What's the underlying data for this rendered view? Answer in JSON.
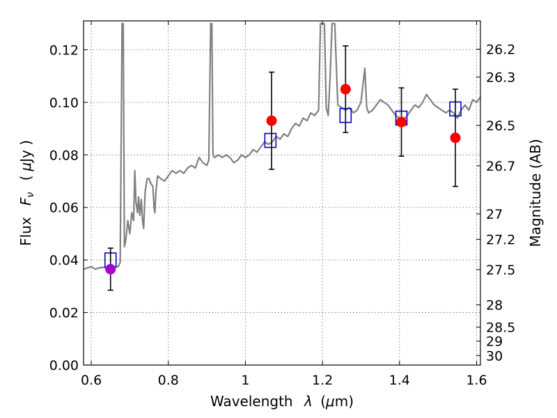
{
  "chart_data": {
    "type": "scatter",
    "xlabel": "Wavelength",
    "xlabel_symbol": "λ",
    "xlabel_unit_open": "(",
    "xlabel_unit_mu": "μ",
    "xlabel_unit_rest": "m)",
    "ylabel": "Flux",
    "ylabel_symbol": "F",
    "ylabel_symbol_sub": "ν",
    "ylabel_unit_open": "(",
    "ylabel_unit_mu": "μ",
    "ylabel_unit_rest": "Jy )",
    "ylabel_right": "Magnitude (AB)",
    "xlim": [
      0.58,
      1.61
    ],
    "ylim": [
      0.0,
      0.131
    ],
    "xticks": [
      0.6,
      0.8,
      1.0,
      1.2,
      1.4,
      1.6
    ],
    "xtick_labels": [
      "0.6",
      "0.8",
      "1",
      "1.2",
      "1.4",
      "1.6"
    ],
    "yticks": [
      0.0,
      0.02,
      0.04,
      0.06,
      0.08,
      0.1,
      0.12
    ],
    "ytick_labels": [
      "0.00",
      "0.02",
      "0.04",
      "0.06",
      "0.08",
      "0.10",
      "0.12"
    ],
    "right_ticks": [
      {
        "label": "26.2",
        "mag": 26.2
      },
      {
        "label": "26.3",
        "mag": 26.3
      },
      {
        "label": "26.5",
        "mag": 26.5
      },
      {
        "label": "26.7",
        "mag": 26.7
      },
      {
        "label": "27",
        "mag": 27.0
      },
      {
        "label": "27.2",
        "mag": 27.2
      },
      {
        "label": "27.5",
        "mag": 27.5
      },
      {
        "label": "28",
        "mag": 28.0
      },
      {
        "label": "28.5",
        "mag": 28.5
      },
      {
        "label": "29",
        "mag": 29.0
      },
      {
        "label": "30",
        "mag": 30.0
      }
    ],
    "grid": true,
    "series": [
      {
        "kind": "line",
        "color": "#808080",
        "points": [
          [
            0.58,
            0.0365
          ],
          [
            0.59,
            0.037
          ],
          [
            0.6,
            0.0375
          ],
          [
            0.61,
            0.0365
          ],
          [
            0.62,
            0.037
          ],
          [
            0.63,
            0.0372
          ],
          [
            0.64,
            0.0368
          ],
          [
            0.65,
            0.037
          ],
          [
            0.66,
            0.0372
          ],
          [
            0.67,
            0.0375
          ],
          [
            0.675,
            0.039
          ],
          [
            0.678,
            0.09
          ],
          [
            0.68,
            0.13
          ],
          [
            0.683,
            0.13
          ],
          [
            0.686,
            0.045
          ],
          [
            0.69,
            0.048
          ],
          [
            0.695,
            0.055
          ],
          [
            0.7,
            0.05
          ],
          [
            0.705,
            0.058
          ],
          [
            0.71,
            0.055
          ],
          [
            0.713,
            0.074
          ],
          [
            0.716,
            0.062
          ],
          [
            0.72,
            0.058
          ],
          [
            0.723,
            0.064
          ],
          [
            0.726,
            0.057
          ],
          [
            0.73,
            0.063
          ],
          [
            0.733,
            0.055
          ],
          [
            0.736,
            0.052
          ],
          [
            0.74,
            0.066
          ],
          [
            0.745,
            0.071
          ],
          [
            0.75,
            0.071
          ],
          [
            0.755,
            0.069
          ],
          [
            0.76,
            0.068
          ],
          [
            0.763,
            0.06
          ],
          [
            0.765,
            0.058
          ],
          [
            0.768,
            0.066
          ],
          [
            0.772,
            0.072
          ],
          [
            0.78,
            0.071
          ],
          [
            0.79,
            0.07
          ],
          [
            0.8,
            0.072
          ],
          [
            0.81,
            0.074
          ],
          [
            0.82,
            0.073
          ],
          [
            0.83,
            0.074
          ],
          [
            0.84,
            0.073
          ],
          [
            0.85,
            0.075
          ],
          [
            0.86,
            0.076
          ],
          [
            0.87,
            0.075
          ],
          [
            0.88,
            0.079
          ],
          [
            0.89,
            0.077
          ],
          [
            0.9,
            0.076
          ],
          [
            0.905,
            0.078
          ],
          [
            0.91,
            0.13
          ],
          [
            0.913,
            0.13
          ],
          [
            0.916,
            0.08
          ],
          [
            0.92,
            0.079
          ],
          [
            0.93,
            0.08
          ],
          [
            0.94,
            0.079
          ],
          [
            0.95,
            0.08
          ],
          [
            0.96,
            0.079
          ],
          [
            0.97,
            0.077
          ],
          [
            0.98,
            0.078
          ],
          [
            0.99,
            0.08
          ],
          [
            1.0,
            0.079
          ],
          [
            1.01,
            0.08
          ],
          [
            1.02,
            0.082
          ],
          [
            1.03,
            0.081
          ],
          [
            1.04,
            0.083
          ],
          [
            1.05,
            0.085
          ],
          [
            1.06,
            0.084
          ],
          [
            1.07,
            0.085
          ],
          [
            1.08,
            0.087
          ],
          [
            1.09,
            0.086
          ],
          [
            1.1,
            0.088
          ],
          [
            1.11,
            0.087
          ],
          [
            1.12,
            0.09
          ],
          [
            1.13,
            0.092
          ],
          [
            1.14,
            0.091
          ],
          [
            1.15,
            0.094
          ],
          [
            1.16,
            0.093
          ],
          [
            1.17,
            0.096
          ],
          [
            1.18,
            0.095
          ],
          [
            1.19,
            0.097
          ],
          [
            1.195,
            0.13
          ],
          [
            1.205,
            0.13
          ],
          [
            1.21,
            0.098
          ],
          [
            1.215,
            0.095
          ],
          [
            1.22,
            0.11
          ],
          [
            1.225,
            0.13
          ],
          [
            1.232,
            0.13
          ],
          [
            1.24,
            0.099
          ],
          [
            1.25,
            0.098
          ],
          [
            1.26,
            0.097
          ],
          [
            1.27,
            0.098
          ],
          [
            1.28,
            0.096
          ],
          [
            1.29,
            0.097
          ],
          [
            1.3,
            0.1
          ],
          [
            1.31,
            0.113
          ],
          [
            1.315,
            0.098
          ],
          [
            1.32,
            0.096
          ],
          [
            1.33,
            0.097
          ],
          [
            1.34,
            0.099
          ],
          [
            1.35,
            0.101
          ],
          [
            1.36,
            0.1
          ],
          [
            1.37,
            0.099
          ],
          [
            1.38,
            0.097
          ],
          [
            1.39,
            0.095
          ],
          [
            1.4,
            0.094
          ],
          [
            1.41,
            0.093
          ],
          [
            1.42,
            0.095
          ],
          [
            1.43,
            0.097
          ],
          [
            1.44,
            0.099
          ],
          [
            1.45,
            0.098
          ],
          [
            1.46,
            0.1
          ],
          [
            1.47,
            0.103
          ],
          [
            1.48,
            0.101
          ],
          [
            1.49,
            0.099
          ],
          [
            1.5,
            0.098
          ],
          [
            1.51,
            0.097
          ],
          [
            1.52,
            0.096
          ],
          [
            1.53,
            0.097
          ],
          [
            1.54,
            0.096
          ],
          [
            1.55,
            0.094
          ],
          [
            1.56,
            0.097
          ],
          [
            1.57,
            0.099
          ],
          [
            1.58,
            0.097
          ],
          [
            1.59,
            0.101
          ],
          [
            1.6,
            0.1
          ],
          [
            1.61,
            0.102
          ]
        ]
      },
      {
        "kind": "markers-square",
        "color": "#0000cc",
        "points": [
          [
            0.65,
            0.04
          ],
          [
            1.065,
            0.0855
          ],
          [
            1.26,
            0.095
          ],
          [
            1.405,
            0.094
          ],
          [
            1.545,
            0.0975
          ]
        ]
      },
      {
        "kind": "markers-circle",
        "color": "#ff0000",
        "points": [
          [
            1.068,
            0.093
          ],
          [
            1.26,
            0.105
          ],
          [
            1.405,
            0.0925
          ],
          [
            1.545,
            0.0865
          ]
        ],
        "errors": [
          0.0185,
          0.0165,
          0.013,
          0.0185
        ]
      },
      {
        "kind": "markers-circle",
        "color": "#aa00cc",
        "points": [
          [
            0.65,
            0.0365
          ]
        ],
        "errors": [
          0.008
        ]
      }
    ]
  }
}
